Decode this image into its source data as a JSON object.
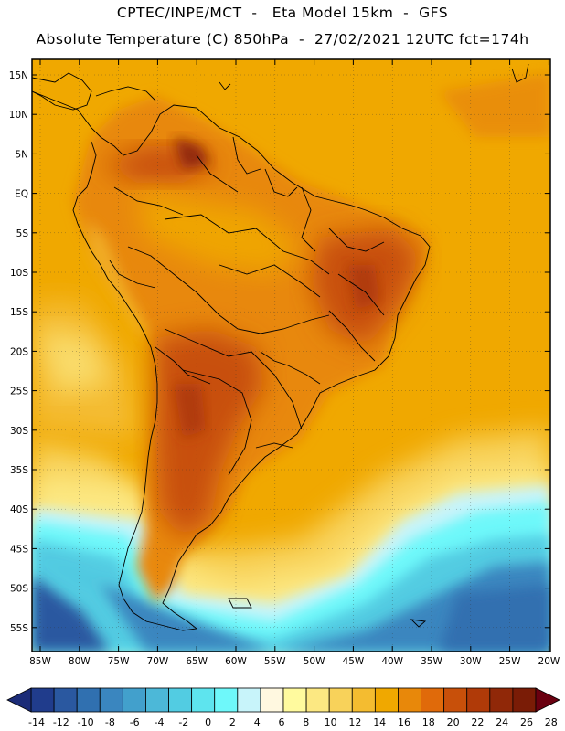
{
  "header": {
    "line1": "CPTEC/INPE/MCT  -   Eta Model 15km  -  GFS",
    "line2": "Absolute Temperature (C) 850hPa  -  27/02/2021 12UTC fct=174h"
  },
  "map": {
    "lat_labels": [
      "15N",
      "10N",
      "5N",
      "EQ",
      "5S",
      "10S",
      "15S",
      "20S",
      "25S",
      "30S",
      "35S",
      "40S",
      "45S",
      "50S",
      "55S"
    ],
    "lon_labels": [
      "85W",
      "80W",
      "75W",
      "70W",
      "65W",
      "60W",
      "55W",
      "50W",
      "45W",
      "40W",
      "35W",
      "30W",
      "25W",
      "20W"
    ]
  },
  "colorbar": {
    "labels": [
      "-14",
      "-12",
      "-10",
      "-8",
      "-6",
      "-4",
      "-2",
      "0",
      "2",
      "4",
      "6",
      "8",
      "10",
      "12",
      "14",
      "16",
      "18",
      "20",
      "22",
      "24",
      "26",
      "28"
    ],
    "colors": [
      "#203c8c",
      "#2a58a0",
      "#3070b0",
      "#3a86bf",
      "#42a0cc",
      "#4cb8d8",
      "#52cce2",
      "#5ee4ee",
      "#6ef8fa",
      "#c8f4fa",
      "#fff8e0",
      "#fffa9e",
      "#fce882",
      "#f8d25a",
      "#f4bc30",
      "#f0a800",
      "#e8880a",
      "#e06a0a",
      "#c8500a",
      "#b03a08",
      "#902808",
      "#7a1c06"
    ],
    "under_color": "#1c2c78",
    "over_color": "#6a0010"
  },
  "colors": {
    "ocean_warm": "#f0a800",
    "land_hot": "#c8500a"
  }
}
